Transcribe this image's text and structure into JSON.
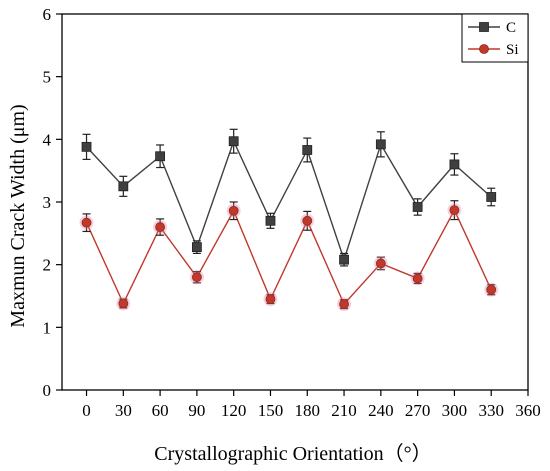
{
  "chart_data": {
    "type": "line",
    "title": "",
    "xlabel": "Crystallographic Orientation（°）",
    "ylabel": "Maxmun Crack Width (μm)",
    "x": [
      0,
      30,
      60,
      90,
      120,
      150,
      180,
      210,
      240,
      270,
      300,
      330
    ],
    "xlim": [
      -20,
      360
    ],
    "ylim": [
      0,
      6
    ],
    "xticks": [
      0,
      30,
      60,
      90,
      120,
      150,
      180,
      210,
      240,
      270,
      300,
      330,
      360
    ],
    "yticks": [
      0,
      1,
      2,
      3,
      4,
      5,
      6
    ],
    "grid": false,
    "legend_position": "top-right",
    "series": [
      {
        "name": "C",
        "color": "#404040",
        "marker": "square",
        "values": [
          3.88,
          3.25,
          3.73,
          2.28,
          3.97,
          2.7,
          3.83,
          2.08,
          3.92,
          2.92,
          3.6,
          3.08
        ],
        "errors": [
          0.2,
          0.16,
          0.18,
          0.1,
          0.19,
          0.12,
          0.19,
          0.1,
          0.2,
          0.13,
          0.17,
          0.14
        ]
      },
      {
        "name": "Si",
        "color": "#c0392b",
        "marker": "circle",
        "values": [
          2.67,
          1.38,
          2.6,
          1.8,
          2.86,
          1.45,
          2.7,
          1.37,
          2.02,
          1.78,
          2.87,
          1.6
        ],
        "errors": [
          0.14,
          0.07,
          0.13,
          0.09,
          0.14,
          0.07,
          0.15,
          0.07,
          0.1,
          0.08,
          0.15,
          0.08
        ]
      }
    ]
  }
}
